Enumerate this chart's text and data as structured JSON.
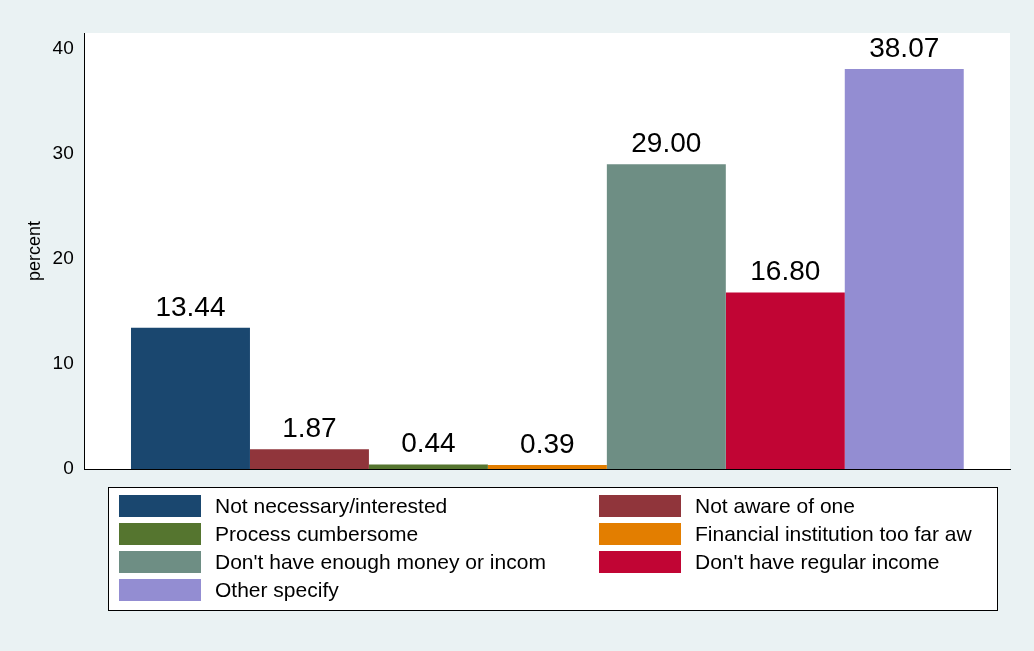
{
  "chart_data": {
    "type": "bar",
    "ylabel": "percent",
    "categories": [
      null
    ],
    "series": [
      {
        "name": "Not necessary/interested",
        "color": "#1a476f",
        "values": [
          13.44
        ],
        "value_labels": [
          "13.44"
        ]
      },
      {
        "name": "Not aware of one",
        "color": "#90353b",
        "values": [
          1.87
        ],
        "value_labels": [
          "1.87"
        ]
      },
      {
        "name": "Process cumbersome",
        "color": "#55752f",
        "values": [
          0.44
        ],
        "value_labels": [
          "0.44"
        ]
      },
      {
        "name": "Financial institution too far aw",
        "color": "#e37e00",
        "values": [
          0.39
        ],
        "value_labels": [
          "0.39"
        ]
      },
      {
        "name": "Don't have enough money or incom",
        "color": "#6e8e84",
        "values": [
          29.0
        ],
        "value_labels": [
          "29.00"
        ]
      },
      {
        "name": "Don't have regular income",
        "color": "#c10534",
        "values": [
          16.8
        ],
        "value_labels": [
          "16.80"
        ]
      },
      {
        "name": "Other specify",
        "color": "#938dd2",
        "values": [
          38.07
        ],
        "value_labels": [
          "38.07"
        ]
      }
    ],
    "ylim": [
      0,
      41.5
    ],
    "yticks": [
      0,
      10,
      20,
      30,
      40
    ],
    "grid": false,
    "legend": "bottom"
  }
}
